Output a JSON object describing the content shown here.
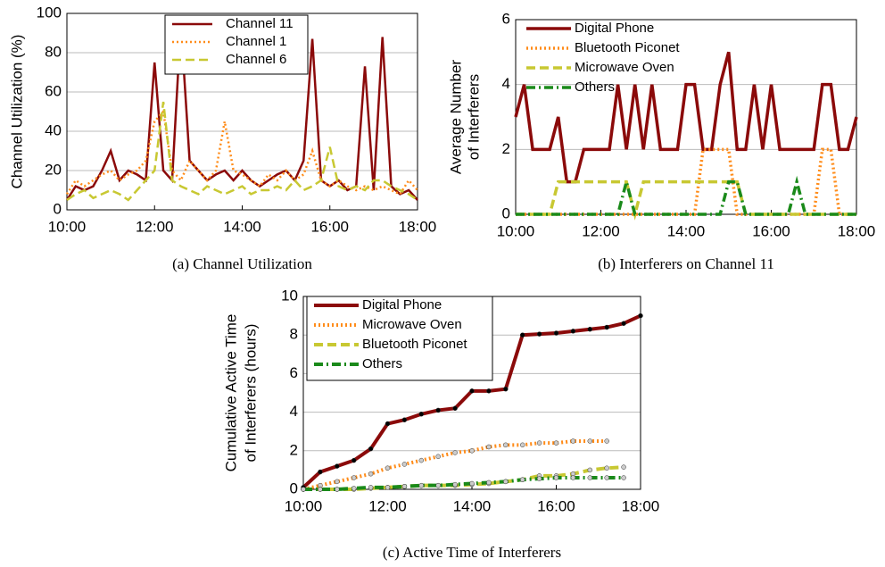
{
  "chart_data": [
    {
      "type": "line",
      "ylabel": [
        "Channel Utilization (%)"
      ],
      "caption": "(a) Channel Utilization",
      "x": [
        10.0,
        10.2,
        10.4,
        10.6,
        10.8,
        11.0,
        11.2,
        11.4,
        11.6,
        11.8,
        12.0,
        12.2,
        12.4,
        12.6,
        12.8,
        13.0,
        13.2,
        13.4,
        13.6,
        13.8,
        14.0,
        14.2,
        14.4,
        14.6,
        14.8,
        15.0,
        15.2,
        15.4,
        15.6,
        15.8,
        16.0,
        16.2,
        16.4,
        16.6,
        16.8,
        17.0,
        17.2,
        17.4,
        17.6,
        17.8,
        18.0
      ],
      "xlim": [
        10,
        18
      ],
      "xticks": [
        {
          "value": 10,
          "label": "10:00"
        },
        {
          "value": 12,
          "label": "12:00"
        },
        {
          "value": 14,
          "label": "14:00"
        },
        {
          "value": 16,
          "label": "16:00"
        },
        {
          "value": 18,
          "label": "18:00"
        }
      ],
      "ylim": [
        0,
        100
      ],
      "yticks": [
        0,
        20,
        40,
        60,
        80,
        100
      ],
      "grid": true,
      "legend": "upper center",
      "legend_frame": true,
      "markers": false,
      "series": [
        {
          "name": "Channel 11",
          "color": "#8b0a0a",
          "style": "solid",
          "width": 2.5,
          "values": [
            5,
            12,
            10,
            12,
            20,
            30,
            15,
            20,
            18,
            15,
            75,
            20,
            15,
            95,
            25,
            20,
            15,
            18,
            20,
            15,
            20,
            15,
            12,
            15,
            18,
            20,
            15,
            25,
            87,
            15,
            12,
            15,
            10,
            12,
            73,
            10,
            88,
            12,
            8,
            10,
            5
          ]
        },
        {
          "name": "Channel 1",
          "color": "#ff8c1a",
          "style": "dotted",
          "width": 2.5,
          "values": [
            8,
            15,
            12,
            15,
            18,
            20,
            15,
            18,
            20,
            25,
            45,
            50,
            20,
            15,
            25,
            20,
            15,
            20,
            45,
            20,
            18,
            15,
            12,
            18,
            15,
            20,
            15,
            18,
            30,
            15,
            12,
            15,
            12,
            10,
            12,
            10,
            12,
            10,
            8,
            15,
            10
          ]
        },
        {
          "name": "Channel 6",
          "color": "#c8c832",
          "style": "dashed",
          "width": 2.5,
          "values": [
            5,
            8,
            10,
            6,
            8,
            10,
            8,
            5,
            10,
            15,
            20,
            55,
            15,
            12,
            10,
            8,
            12,
            10,
            8,
            10,
            12,
            8,
            10,
            10,
            12,
            10,
            15,
            10,
            12,
            15,
            32,
            12,
            10,
            12,
            10,
            15,
            15,
            12,
            10,
            8,
            5
          ]
        }
      ]
    },
    {
      "type": "line",
      "ylabel": [
        "Average Number",
        "of Interferers"
      ],
      "caption": "(b) Interferers on Channel 11",
      "x": [
        10.0,
        10.2,
        10.4,
        10.6,
        10.8,
        11.0,
        11.2,
        11.4,
        11.6,
        11.8,
        12.0,
        12.2,
        12.4,
        12.6,
        12.8,
        13.0,
        13.2,
        13.4,
        13.6,
        13.8,
        14.0,
        14.2,
        14.4,
        14.6,
        14.8,
        15.0,
        15.2,
        15.4,
        15.6,
        15.8,
        16.0,
        16.2,
        16.4,
        16.6,
        16.8,
        17.0,
        17.2,
        17.4,
        17.6,
        17.8,
        18.0
      ],
      "xlim": [
        10,
        18
      ],
      "xticks": [
        {
          "value": 10,
          "label": "10:00"
        },
        {
          "value": 12,
          "label": "12:00"
        },
        {
          "value": 14,
          "label": "14:00"
        },
        {
          "value": 16,
          "label": "16:00"
        },
        {
          "value": 18,
          "label": "18:00"
        }
      ],
      "ylim": [
        0,
        6
      ],
      "yticks": [
        0,
        2,
        4,
        6
      ],
      "grid": true,
      "legend": "upper left",
      "legend_frame": false,
      "markers": false,
      "series": [
        {
          "name": "Digital Phone",
          "color": "#8b0a0a",
          "style": "solid",
          "width": 3.5,
          "values": [
            3,
            4,
            2,
            2,
            2,
            3,
            1,
            1,
            2,
            2,
            2,
            2,
            4,
            2,
            4,
            2,
            4,
            2,
            2,
            2,
            4,
            4,
            2,
            2,
            4,
            5,
            2,
            2,
            4,
            2,
            4,
            2,
            2,
            2,
            2,
            2,
            4,
            4,
            2,
            2,
            3
          ]
        },
        {
          "name": "Bluetooth Piconet",
          "color": "#ff8c1a",
          "style": "dotted",
          "width": 3.5,
          "values": [
            0,
            0,
            0,
            0,
            0,
            0,
            0,
            0,
            0,
            0,
            0,
            0,
            0,
            0,
            0,
            0,
            0,
            0,
            0,
            0,
            0,
            0,
            2,
            2,
            2,
            2,
            0,
            0,
            0,
            0,
            0,
            0,
            0,
            0,
            0,
            0,
            2,
            2,
            0,
            0,
            0
          ]
        },
        {
          "name": "Microwave Oven",
          "color": "#c8c832",
          "style": "dashed",
          "width": 3.5,
          "values": [
            0,
            0,
            0,
            0,
            0,
            1,
            1,
            1,
            1,
            1,
            1,
            1,
            1,
            1,
            0,
            1,
            1,
            1,
            1,
            1,
            1,
            1,
            1,
            1,
            1,
            1,
            1,
            0,
            0,
            0,
            0,
            0,
            0,
            0,
            0,
            0,
            0,
            0,
            0,
            0,
            0
          ]
        },
        {
          "name": "Others",
          "color": "#1a8a1a",
          "style": "dashdot",
          "width": 3.5,
          "values": [
            0,
            0,
            0,
            0,
            0,
            0,
            0,
            0,
            0,
            0,
            0,
            0,
            0,
            1,
            0,
            0,
            0,
            0,
            0,
            0,
            0,
            0,
            0,
            0,
            0,
            1,
            1,
            0,
            0,
            0,
            0,
            0,
            0,
            1,
            0,
            0,
            0,
            0,
            0,
            0,
            0
          ]
        }
      ]
    },
    {
      "type": "line",
      "ylabel": [
        "Cumulative Active Time",
        "of Interferers (hours)"
      ],
      "caption": "(c) Active Time of Interferers",
      "x": [
        10.0,
        10.4,
        10.8,
        11.2,
        11.6,
        12.0,
        12.4,
        12.8,
        13.2,
        13.6,
        14.0,
        14.4,
        14.8,
        15.2,
        15.6,
        16.0,
        16.4,
        16.8,
        17.2,
        17.6,
        18.0
      ],
      "xlim": [
        10,
        18
      ],
      "xticks": [
        {
          "value": 10,
          "label": "10:00"
        },
        {
          "value": 12,
          "label": "12:00"
        },
        {
          "value": 14,
          "label": "14:00"
        },
        {
          "value": 16,
          "label": "16:00"
        },
        {
          "value": 18,
          "label": "18:00"
        }
      ],
      "ylim": [
        0,
        10
      ],
      "yticks": [
        0,
        2,
        4,
        6,
        8,
        10
      ],
      "grid": true,
      "legend": "upper left",
      "legend_frame": true,
      "markers": true,
      "series": [
        {
          "name": "Digital Phone",
          "color": "#8b0a0a",
          "style": "solid",
          "width": 4,
          "values": [
            0.1,
            0.9,
            1.2,
            1.5,
            2.1,
            3.4,
            3.6,
            3.9,
            4.1,
            4.2,
            5.1,
            5.1,
            5.2,
            8.0,
            8.05,
            8.1,
            8.2,
            8.3,
            8.4,
            8.6,
            9.0
          ]
        },
        {
          "name": "Microwave Oven",
          "color": "#ff8c1a",
          "style": "dotted",
          "width": 4,
          "values": [
            0,
            0.2,
            0.4,
            0.6,
            0.8,
            1.1,
            1.3,
            1.5,
            1.7,
            1.9,
            2.0,
            2.2,
            2.3,
            2.3,
            2.4,
            2.4,
            2.5,
            2.5,
            2.5,
            null,
            null
          ]
        },
        {
          "name": "Bluetooth Piconet",
          "color": "#c8c832",
          "style": "dashed",
          "width": 4,
          "values": [
            0,
            0,
            0,
            0,
            0.05,
            0.1,
            0.15,
            0.2,
            0.2,
            0.2,
            0.25,
            0.3,
            0.4,
            0.5,
            0.7,
            0.7,
            0.8,
            1.0,
            1.1,
            1.15,
            null
          ]
        },
        {
          "name": "Others",
          "color": "#1a8a1a",
          "style": "dashdot",
          "width": 4,
          "values": [
            0,
            0,
            0,
            0.05,
            0.1,
            0.1,
            0.15,
            0.2,
            0.2,
            0.25,
            0.3,
            0.35,
            0.4,
            0.5,
            0.55,
            0.6,
            0.6,
            0.6,
            0.6,
            0.6,
            null
          ]
        }
      ]
    }
  ]
}
